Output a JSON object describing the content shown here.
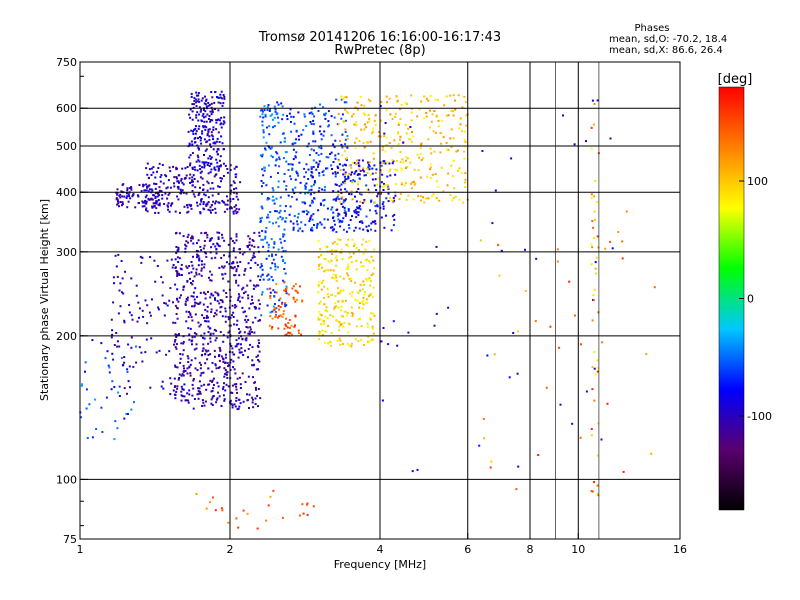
{
  "chart_data": {
    "type": "scatter",
    "title": "Tromsø 20141206 16:16:00-16:17:43",
    "subtitle": "RwPretec (8p)",
    "xlabel": "Frequency [MHz]",
    "ylabel": "Stationary phase Virtual Height [km]",
    "x_scale": "log",
    "y_scale": "log",
    "xlim": [
      1,
      16
    ],
    "ylim": [
      75,
      750
    ],
    "x_ticks": [
      {
        "v": 1,
        "label": "1"
      },
      {
        "v": 2,
        "label": "2"
      },
      {
        "v": 4,
        "label": "4"
      },
      {
        "v": 6,
        "label": "6"
      },
      {
        "v": 8,
        "label": "8"
      },
      {
        "v": 10,
        "label": "10"
      },
      {
        "v": 16,
        "label": "16"
      }
    ],
    "x_grid": [
      2,
      4,
      6,
      8,
      10
    ],
    "x_minor": [
      9,
      11
    ],
    "y_ticks": [
      {
        "v": 75,
        "label": "75"
      },
      {
        "v": 100,
        "label": "100"
      },
      {
        "v": 200,
        "label": "200"
      },
      {
        "v": 300,
        "label": "300"
      },
      {
        "v": 400,
        "label": "400"
      },
      {
        "v": 500,
        "label": "500"
      },
      {
        "v": 600,
        "label": "600"
      },
      {
        "v": 750,
        "label": "750"
      }
    ],
    "y_grid": [
      100,
      200,
      300,
      400,
      500,
      600
    ],
    "info_block": {
      "title": "Phases",
      "line1": "mean, sd,O: -70.2, 18.4",
      "line2": "mean, sd,X: 86.6, 26.4"
    },
    "colorbar": {
      "label": "[deg]",
      "range": [
        -180,
        180
      ],
      "ticks": [
        {
          "v": 100,
          "label": "100"
        },
        {
          "v": 0,
          "label": "0"
        },
        {
          "v": -100,
          "label": "-100"
        }
      ],
      "stops": [
        "#000000",
        "#5a0070",
        "#0000ff",
        "#00c8ff",
        "#00ff00",
        "#ffff00",
        "#ff8000",
        "#ff0000"
      ]
    },
    "clusters": [
      {
        "name": "O lower band",
        "x": [
          1.55,
          2.3
        ],
        "y": [
          140,
          330
        ],
        "n": 700,
        "phase": [
          -125,
          -85
        ]
      },
      {
        "name": "O mid band",
        "x": [
          1.35,
          2.1
        ],
        "y": [
          360,
          460
        ],
        "n": 260,
        "phase": [
          -120,
          -80
        ]
      },
      {
        "name": "O upper trace",
        "x": [
          1.65,
          1.95
        ],
        "y": [
          440,
          650
        ],
        "n": 220,
        "phase": [
          -115,
          -75
        ]
      },
      {
        "name": "O ramp",
        "x": [
          1.15,
          1.6
        ],
        "y": [
          150,
          300
        ],
        "n": 120,
        "phase": [
          -125,
          -75
        ]
      },
      {
        "name": "low frequency strip",
        "x": [
          1.0,
          1.3
        ],
        "y": [
          120,
          200
        ],
        "n": 40,
        "phase": [
          -85,
          -35
        ]
      },
      {
        "name": "O left arm",
        "x": [
          1.18,
          1.45
        ],
        "y": [
          370,
          420
        ],
        "n": 90,
        "phase": [
          -125,
          -85
        ]
      },
      {
        "name": "O vertical 2.4",
        "x": [
          2.3,
          2.6
        ],
        "y": [
          220,
          620
        ],
        "n": 220,
        "phase": [
          -75,
          -35
        ]
      },
      {
        "name": "O vertical 2.7",
        "x": [
          2.6,
          2.95
        ],
        "y": [
          330,
          600
        ],
        "n": 120,
        "phase": [
          -85,
          -45
        ]
      },
      {
        "name": "mixed near 3",
        "x": [
          2.9,
          3.45
        ],
        "y": [
          330,
          630
        ],
        "n": 140,
        "phase": [
          -90,
          -40
        ]
      },
      {
        "name": "O arc",
        "x": [
          3.2,
          4.3
        ],
        "y": [
          330,
          470
        ],
        "n": 200,
        "phase": [
          -110,
          -55
        ]
      },
      {
        "name": "X upper",
        "x": [
          3.3,
          6.0
        ],
        "y": [
          380,
          640
        ],
        "n": 320,
        "phase": [
          75,
          125
        ]
      },
      {
        "name": "X lower",
        "x": [
          3.0,
          3.9
        ],
        "y": [
          190,
          320
        ],
        "n": 260,
        "phase": [
          65,
          115
        ]
      },
      {
        "name": "O low 2.5",
        "x": [
          2.4,
          2.8
        ],
        "y": [
          200,
          260
        ],
        "n": 70,
        "phase": [
          120,
          170
        ]
      },
      {
        "name": "E echoes",
        "x": [
          1.7,
          3.0
        ],
        "y": [
          78,
          95
        ],
        "n": 25,
        "phase": [
          110,
          170
        ]
      },
      {
        "name": "sparse O high f",
        "x": [
          4.0,
          12.0
        ],
        "y": [
          100,
          650
        ],
        "n": 45,
        "phase": [
          -115,
          -70
        ]
      },
      {
        "name": "interference 10.8",
        "x": [
          10.6,
          11.0
        ],
        "y": [
          90,
          640
        ],
        "n": 45,
        "phase": [
          60,
          170
        ]
      },
      {
        "name": "sparse warm",
        "x": [
          5.5,
          15.0
        ],
        "y": [
          95,
          400
        ],
        "n": 35,
        "phase": [
          90,
          170
        ]
      }
    ]
  }
}
